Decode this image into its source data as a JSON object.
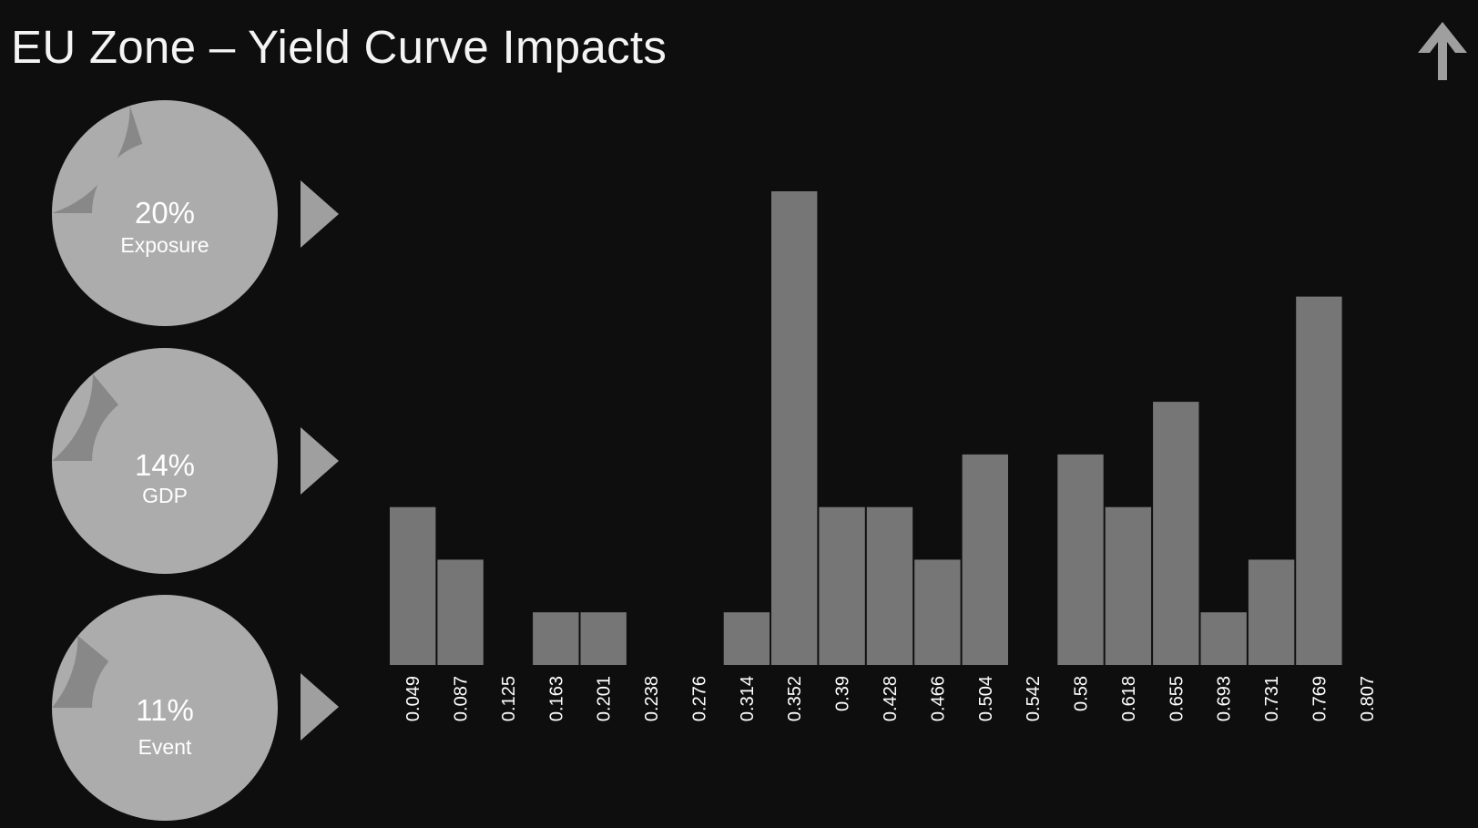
{
  "header": {
    "title": "EU Zone – Yield Curve Impacts",
    "nav_icon": "up-arrow-icon"
  },
  "kpis": [
    {
      "value_label": "20%",
      "label": "Exposure",
      "fraction": 0.2
    },
    {
      "value_label": "14%",
      "label": "GDP",
      "fraction": 0.14
    },
    {
      "value_label": "11%",
      "label": "Event",
      "fraction": 0.11
    }
  ],
  "colors": {
    "background": "#0e0e0e",
    "kpi_circle": "#acacac",
    "kpi_wedge": "#888888",
    "bar": "#767676",
    "play_icon": "#9f9f9f",
    "text": "#ffffff"
  },
  "chart_data": {
    "type": "bar",
    "title": "",
    "xlabel": "",
    "ylabel": "",
    "categories": [
      "0.049",
      "0.087",
      "0.125",
      "0.163",
      "0.201",
      "0.238",
      "0.276",
      "0.314",
      "0.352",
      "0.39",
      "0.428",
      "0.466",
      "0.504",
      "0.542",
      "0.58",
      "0.618",
      "0.655",
      "0.693",
      "0.731",
      "0.769",
      "0.807"
    ],
    "values": [
      3,
      2,
      0,
      1,
      1,
      0,
      0,
      1,
      9,
      3,
      3,
      2,
      4,
      0,
      4,
      3,
      5,
      1,
      2,
      7,
      0
    ],
    "ylim": [
      0,
      9
    ],
    "grid": false,
    "legend": "none"
  }
}
